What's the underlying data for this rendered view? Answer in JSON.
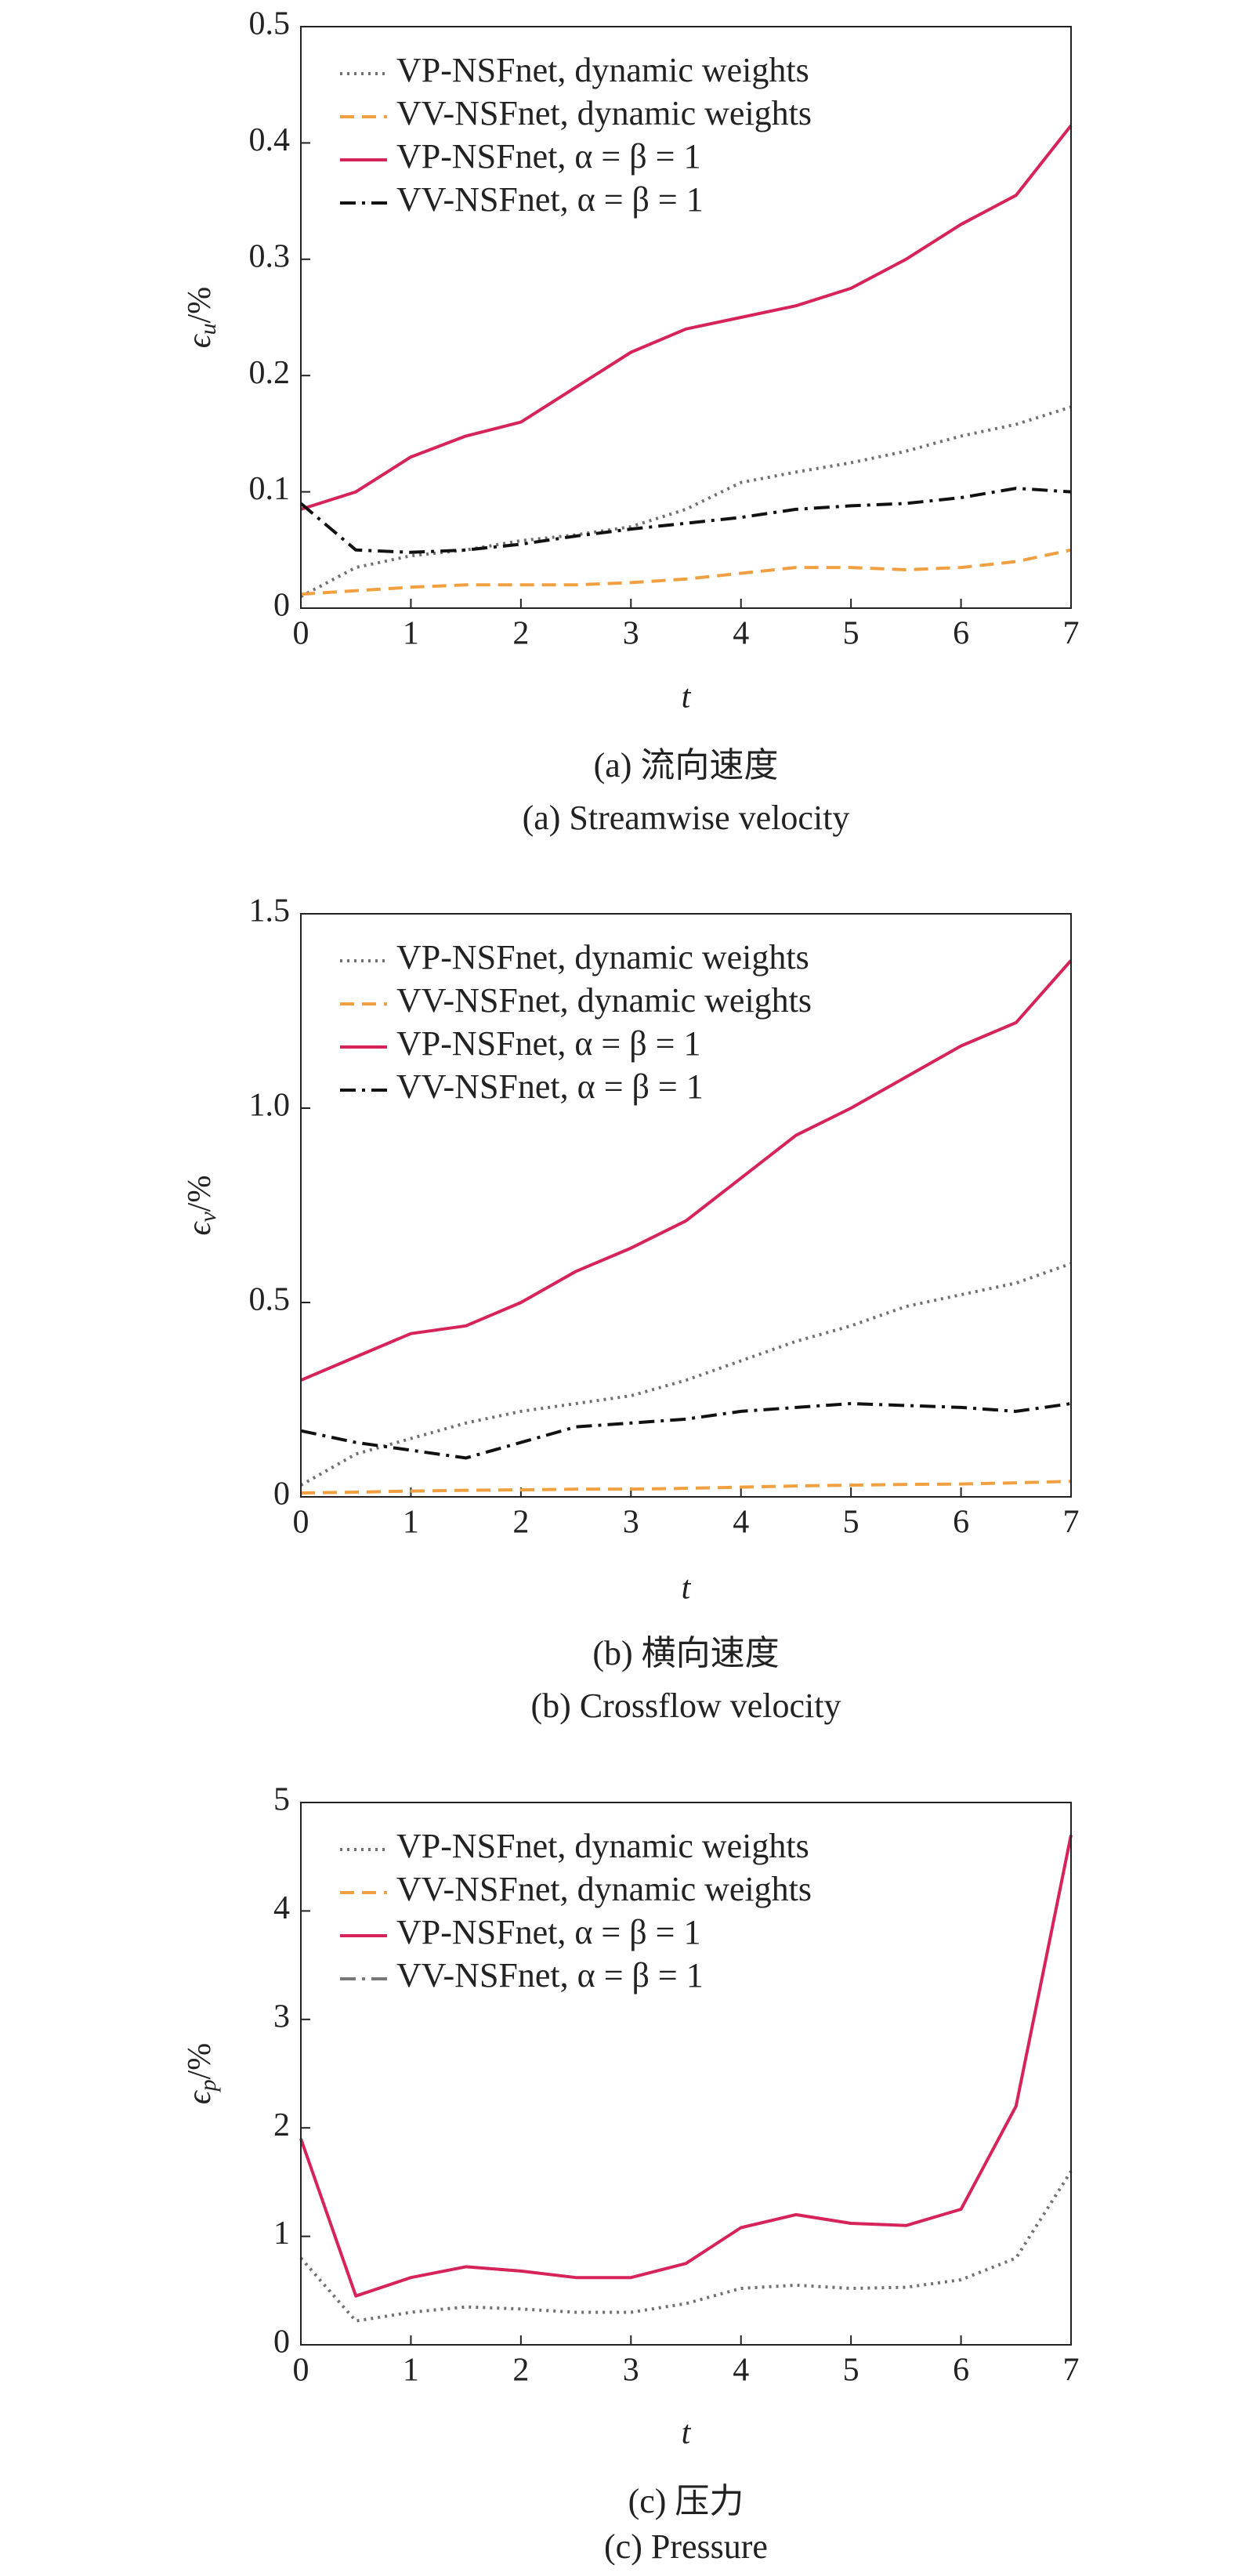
{
  "chart_data": [
    {
      "type": "line",
      "xlabel": "t",
      "ylabel": {
        "symbol": "ϵ",
        "sub": "u",
        "unit": "/%"
      },
      "captions": [
        "(a) 流向速度",
        "(a) Streamwise velocity"
      ],
      "x": [
        0,
        0.5,
        1,
        1.5,
        2,
        2.5,
        3,
        3.5,
        4,
        4.5,
        5,
        5.5,
        6,
        6.5,
        7
      ],
      "xlim": [
        0,
        7
      ],
      "xticks": [
        0,
        1,
        2,
        3,
        4,
        5,
        6,
        7
      ],
      "ylim": [
        0,
        0.5
      ],
      "yticks": [
        0,
        0.1,
        0.2,
        0.3,
        0.4,
        0.5
      ],
      "legend": "upper left",
      "series": [
        {
          "name": "VP-NSFnet, dynamic weights",
          "color": "#707070",
          "style": "dotted",
          "values": [
            0.01,
            0.035,
            0.045,
            0.05,
            0.058,
            0.063,
            0.07,
            0.085,
            0.108,
            0.117,
            0.125,
            0.135,
            0.148,
            0.158,
            0.173
          ]
        },
        {
          "name": "VV-NSFnet, dynamic weights",
          "color": "#f0a040",
          "style": "dashed",
          "values": [
            0.012,
            0.015,
            0.018,
            0.02,
            0.02,
            0.02,
            0.022,
            0.025,
            0.03,
            0.035,
            0.035,
            0.033,
            0.035,
            0.04,
            0.05
          ]
        },
        {
          "name": "VP-NSFnet, α = β = 1",
          "color": "#d6245a",
          "style": "solid",
          "values": [
            0.085,
            0.1,
            0.13,
            0.148,
            0.16,
            0.19,
            0.22,
            0.24,
            0.25,
            0.26,
            0.275,
            0.3,
            0.33,
            0.355,
            0.415
          ]
        },
        {
          "name": "VV-NSFnet, α = β = 1",
          "color": "#111111",
          "style": "dashdot",
          "values": [
            0.09,
            0.05,
            0.048,
            0.05,
            0.055,
            0.062,
            0.068,
            0.073,
            0.078,
            0.085,
            0.088,
            0.09,
            0.095,
            0.103,
            0.1
          ]
        }
      ]
    },
    {
      "type": "line",
      "xlabel": "t",
      "ylabel": {
        "symbol": "ϵ",
        "sub": "v",
        "unit": "/%"
      },
      "captions": [
        "(b) 横向速度",
        "(b) Crossflow velocity"
      ],
      "x": [
        0,
        0.5,
        1,
        1.5,
        2,
        2.5,
        3,
        3.5,
        4,
        4.5,
        5,
        5.5,
        6,
        6.5,
        7
      ],
      "xlim": [
        0,
        7
      ],
      "xticks": [
        0,
        1,
        2,
        3,
        4,
        5,
        6,
        7
      ],
      "ylim": [
        0,
        1.5
      ],
      "yticks": [
        0,
        0.5,
        {
          "value": 1,
          "label": "1.0"
        },
        1.5
      ],
      "legend": "upper left",
      "series": [
        {
          "name": "VP-NSFnet, dynamic weights",
          "color": "#707070",
          "style": "dotted",
          "values": [
            0.03,
            0.11,
            0.15,
            0.19,
            0.22,
            0.24,
            0.26,
            0.3,
            0.35,
            0.4,
            0.44,
            0.49,
            0.52,
            0.55,
            0.6
          ]
        },
        {
          "name": "VV-NSFnet, dynamic weights",
          "color": "#f0a040",
          "style": "dashed",
          "values": [
            0.01,
            0.012,
            0.015,
            0.017,
            0.018,
            0.02,
            0.02,
            0.022,
            0.025,
            0.028,
            0.03,
            0.032,
            0.033,
            0.036,
            0.04
          ]
        },
        {
          "name": "VP-NSFnet, α = β = 1",
          "color": "#d6245a",
          "style": "solid",
          "values": [
            0.3,
            0.36,
            0.42,
            0.44,
            0.5,
            0.58,
            0.64,
            0.71,
            0.82,
            0.93,
            1.0,
            1.08,
            1.16,
            1.22,
            1.38
          ]
        },
        {
          "name": "VV-NSFnet, α = β = 1",
          "color": "#111111",
          "style": "dashdot",
          "values": [
            0.17,
            0.14,
            0.12,
            0.1,
            0.14,
            0.18,
            0.19,
            0.2,
            0.22,
            0.23,
            0.24,
            0.235,
            0.23,
            0.22,
            0.24
          ]
        }
      ]
    },
    {
      "type": "line",
      "xlabel": "t",
      "ylabel": {
        "symbol": "ϵ",
        "sub": "p",
        "unit": "/%"
      },
      "captions": [
        "(c) 压力",
        "(c) Pressure"
      ],
      "x": [
        0,
        0.5,
        1,
        1.5,
        2,
        2.5,
        3,
        3.5,
        4,
        4.5,
        5,
        5.5,
        6,
        6.5,
        7
      ],
      "xlim": [
        0,
        7
      ],
      "xticks": [
        0,
        1,
        2,
        3,
        4,
        5,
        6,
        7
      ],
      "ylim": [
        0,
        5
      ],
      "yticks": [
        0,
        1,
        2,
        3,
        4,
        5
      ],
      "legend": "upper left",
      "series": [
        {
          "name": "VP-NSFnet, dynamic weights",
          "color": "#707070",
          "style": "dotted",
          "values": [
            0.8,
            0.22,
            0.3,
            0.35,
            0.33,
            0.3,
            0.3,
            0.38,
            0.52,
            0.55,
            0.52,
            0.53,
            0.6,
            0.8,
            1.6
          ]
        },
        {
          "name": "VV-NSFnet, dynamic weights",
          "color": "#f0a040",
          "style": "dashed"
        },
        {
          "name": "VP-NSFnet, α = β = 1",
          "color": "#d6245a",
          "style": "solid",
          "values": [
            1.9,
            0.45,
            0.62,
            0.72,
            0.68,
            0.62,
            0.62,
            0.75,
            1.08,
            1.2,
            1.12,
            1.1,
            1.25,
            2.2,
            4.7
          ]
        },
        {
          "name": "VV-NSFnet, α = β = 1",
          "color": "#777777",
          "style": "dashdot"
        }
      ]
    }
  ]
}
